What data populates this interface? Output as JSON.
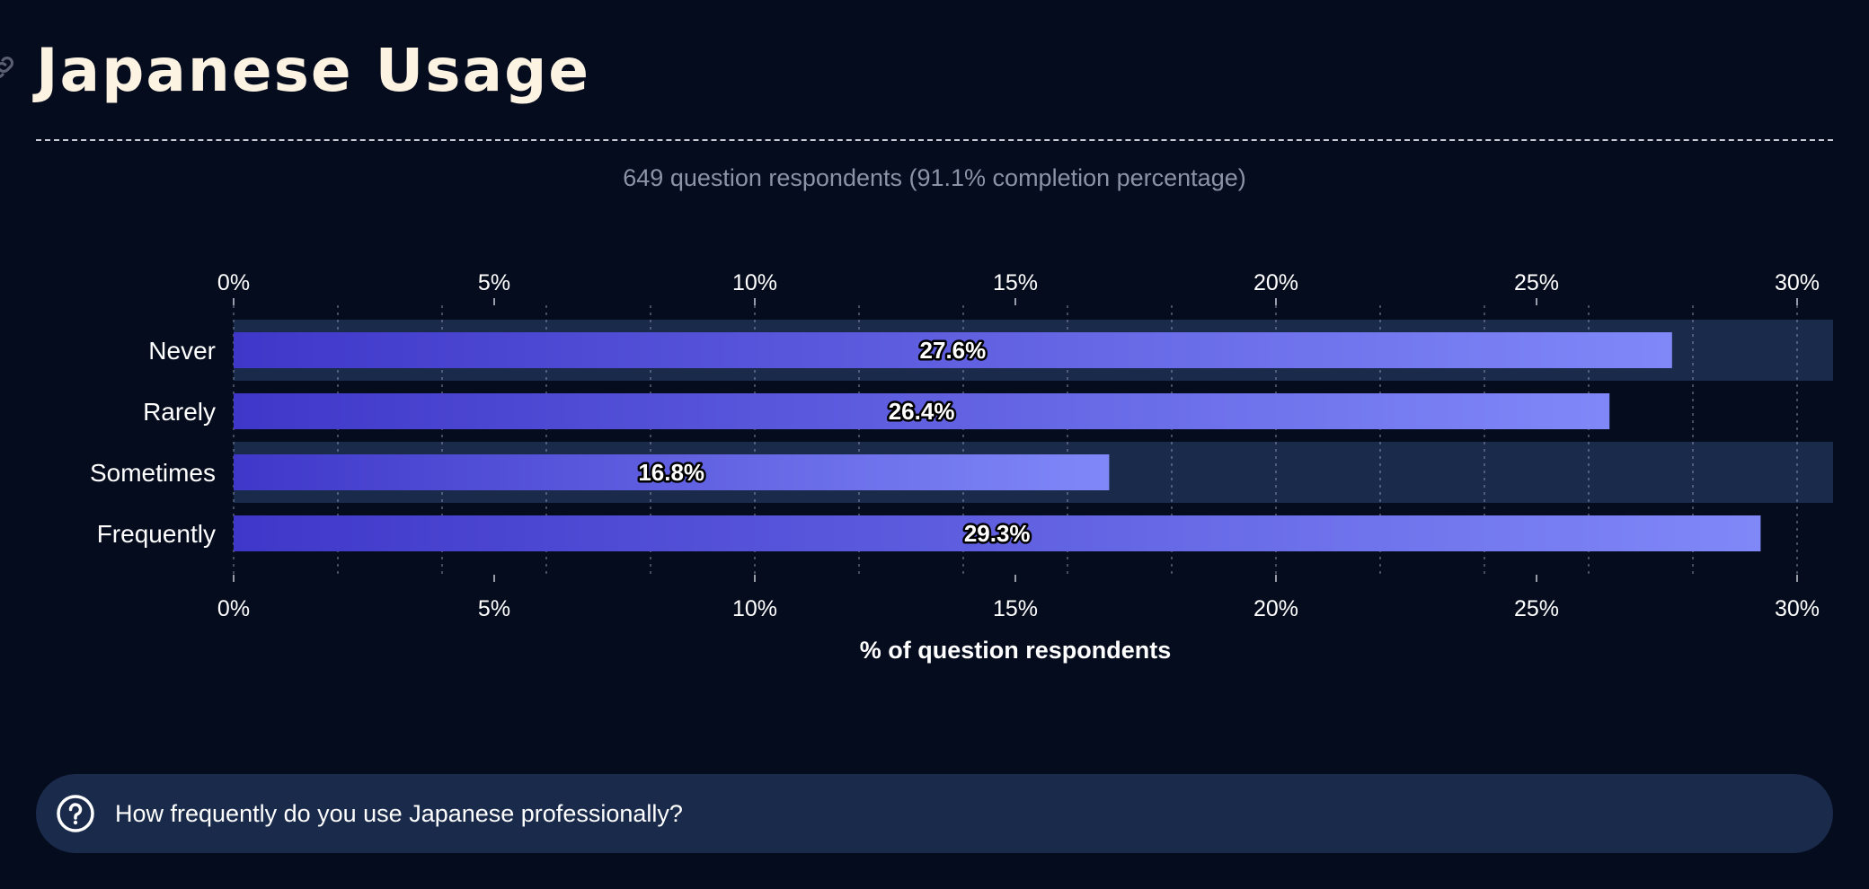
{
  "page": {
    "title": "Japanese Usage",
    "subtitle": "649 question respondents (91.1% completion percentage)"
  },
  "question": {
    "text": "How frequently do you use Japanese professionally?",
    "icon": "question-circle-icon"
  },
  "colors": {
    "background": "#050c1e",
    "title": "#fdf3e3",
    "row_band": "#1a2a4a",
    "bar_start": "#3f37c9",
    "bar_end": "#8088f8"
  },
  "chart_data": {
    "type": "bar",
    "orientation": "horizontal",
    "categories": [
      "Never",
      "Rarely",
      "Sometimes",
      "Frequently"
    ],
    "values": [
      27.6,
      26.4,
      16.8,
      29.3
    ],
    "value_labels": [
      "27.6%",
      "26.4%",
      "16.8%",
      "29.3%"
    ],
    "xlabel": "% of question respondents",
    "ylabel": "",
    "xlim": [
      0,
      30
    ],
    "xticks": [
      0,
      5,
      10,
      15,
      20,
      25,
      30
    ],
    "xtick_labels": [
      "0%",
      "5%",
      "10%",
      "15%",
      "20%",
      "25%",
      "30%"
    ],
    "grid": true,
    "axis_labels_top_and_bottom": true
  }
}
